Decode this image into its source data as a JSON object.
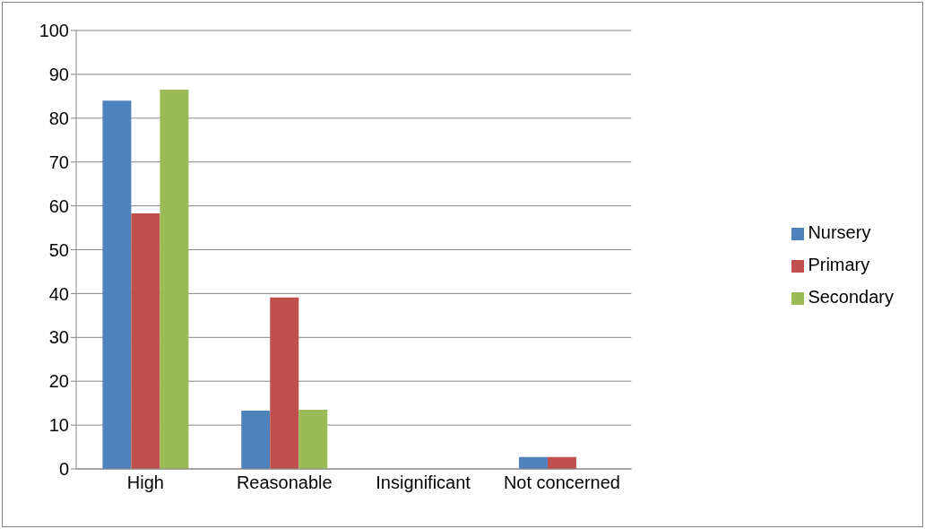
{
  "chart_data": {
    "type": "bar",
    "categories": [
      "High",
      "Reasonable",
      "Insignificant",
      "Not concerned"
    ],
    "series": [
      {
        "name": "Nursery",
        "color": "#4f81bd",
        "values": [
          84,
          13.3,
          0,
          2.7
        ]
      },
      {
        "name": "Primary",
        "color": "#c0504d",
        "values": [
          58.3,
          39.1,
          0,
          2.7
        ]
      },
      {
        "name": "Secondary",
        "color": "#9bbb59",
        "values": [
          86.5,
          13.5,
          0,
          0
        ]
      }
    ],
    "ylim": [
      0,
      100
    ],
    "yticks": [
      0,
      10,
      20,
      30,
      40,
      50,
      60,
      70,
      80,
      90,
      100
    ],
    "grid": "y",
    "legend": "right"
  }
}
